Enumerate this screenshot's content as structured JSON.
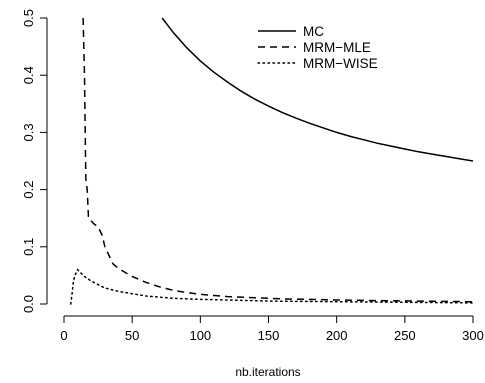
{
  "chart_data": {
    "type": "line",
    "title": "",
    "xlabel": "nb.iterations",
    "ylabel": "",
    "xlim": [
      0,
      300
    ],
    "ylim": [
      0,
      0.5
    ],
    "x_ticks": [
      0,
      50,
      100,
      150,
      200,
      250,
      300
    ],
    "y_ticks": [
      0.0,
      0.1,
      0.2,
      0.3,
      0.4,
      0.5
    ],
    "x_tick_labels": [
      "0",
      "50",
      "100",
      "150",
      "200",
      "250",
      "300"
    ],
    "y_tick_labels": [
      "0.0",
      "0.1",
      "0.2",
      "0.3",
      "0.4",
      "0.5"
    ],
    "grid": false,
    "legend_position": "top-right",
    "series": [
      {
        "name": "MC",
        "line_style": "solid",
        "x": [
          72,
          80,
          90,
          100,
          110,
          120,
          130,
          140,
          150,
          160,
          170,
          180,
          190,
          200,
          210,
          220,
          230,
          240,
          250,
          260,
          270,
          280,
          290,
          300
        ],
        "y": [
          0.5,
          0.475,
          0.448,
          0.425,
          0.405,
          0.388,
          0.372,
          0.358,
          0.346,
          0.335,
          0.325,
          0.316,
          0.308,
          0.3,
          0.293,
          0.287,
          0.281,
          0.276,
          0.271,
          0.266,
          0.262,
          0.258,
          0.254,
          0.25
        ]
      },
      {
        "name": "MRM−MLE",
        "line_style": "dashed",
        "x": [
          14,
          15,
          16,
          17,
          18,
          20,
          22,
          25,
          28,
          30,
          33,
          36,
          40,
          45,
          50,
          60,
          70,
          80,
          90,
          100,
          120,
          140,
          160,
          180,
          200,
          230,
          260,
          300
        ],
        "y": [
          0.5,
          0.4,
          0.22,
          0.2,
          0.15,
          0.145,
          0.14,
          0.135,
          0.12,
          0.1,
          0.085,
          0.07,
          0.062,
          0.055,
          0.048,
          0.038,
          0.03,
          0.024,
          0.02,
          0.017,
          0.013,
          0.011,
          0.009,
          0.008,
          0.007,
          0.006,
          0.005,
          0.004
        ]
      },
      {
        "name": "MRM−WISE",
        "line_style": "dotted",
        "x": [
          5,
          6,
          7,
          8,
          9,
          10,
          12,
          15,
          20,
          25,
          30,
          40,
          50,
          60,
          70,
          80,
          100,
          120,
          150,
          200,
          250,
          300
        ],
        "y": [
          0.0,
          0.02,
          0.04,
          0.05,
          0.055,
          0.06,
          0.055,
          0.048,
          0.04,
          0.034,
          0.028,
          0.022,
          0.018,
          0.014,
          0.012,
          0.01,
          0.008,
          0.007,
          0.005,
          0.004,
          0.003,
          0.002
        ]
      }
    ]
  }
}
